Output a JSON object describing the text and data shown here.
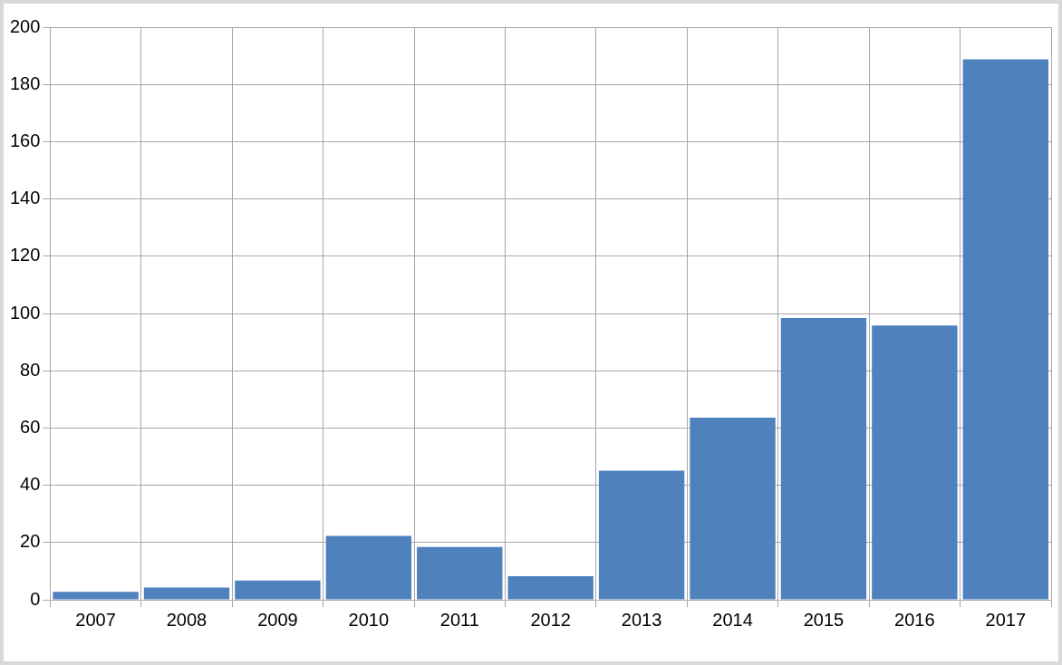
{
  "chart_data": {
    "type": "bar",
    "categories": [
      "2007",
      "2008",
      "2009",
      "2010",
      "2011",
      "2012",
      "2013",
      "2014",
      "2015",
      "2016",
      "2017"
    ],
    "values": [
      2.8,
      4.3,
      6.7,
      22.3,
      18.4,
      8.2,
      45.1,
      63.6,
      98.4,
      95.8,
      188.8
    ],
    "color": "#4f81bd",
    "ylim": [
      0,
      200
    ],
    "yticks": [
      0,
      20,
      40,
      60,
      80,
      100,
      120,
      140,
      160,
      180,
      200
    ],
    "grid": true
  }
}
